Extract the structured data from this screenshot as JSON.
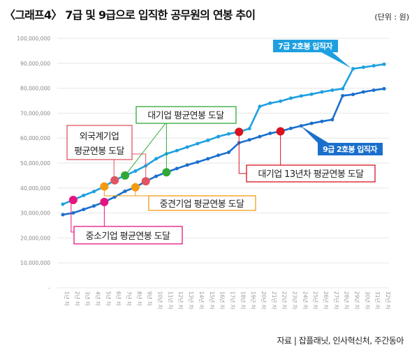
{
  "header": {
    "title": "〈그래프4〉 7급 및 9급으로 입직한 공무원의 연봉 추이",
    "unit": "(단위 : 원)"
  },
  "footer": {
    "source": "자료 | 잡플래닛, 인사혁신처, 주간동아"
  },
  "chart_data": {
    "type": "line",
    "title": "〈그래프4〉 7급 및 9급으로 입직한 공무원의 연봉 추이",
    "ylim": [
      0,
      100000000
    ],
    "grid": true,
    "yticks": [
      "-",
      "10,000,000",
      "20,000,000",
      "30,000,000",
      "40,000,000",
      "50,000,000",
      "60,000,000",
      "70,000,000",
      "80,000,000",
      "90,000,000",
      "100,000,000"
    ],
    "categories": [
      "1년 차",
      "2년 차",
      "3년 차",
      "4년 차",
      "5년 차",
      "6년 차",
      "7년 차",
      "8년 차",
      "9년 차",
      "10년 차",
      "11년 차",
      "12년 차",
      "13년 차",
      "14년 차",
      "15년 차",
      "16년 차",
      "17년 차",
      "18년 차",
      "19년 차",
      "20년 차",
      "21년 차",
      "22년 차",
      "23년 차",
      "24년 차",
      "25년 차",
      "26년 차",
      "27년 차",
      "28년 차",
      "29년 차",
      "30년 차",
      "31년 차",
      "32년 차"
    ],
    "series": [
      {
        "name": "7급 2호봉 입직자",
        "color": "#1ea0e0",
        "values": [
          33500000,
          35200000,
          37000000,
          38600000,
          40600000,
          43100000,
          45000000,
          46800000,
          48900000,
          51700000,
          53700000,
          55000000,
          56400000,
          57800000,
          59100000,
          60600000,
          61700000,
          62500000,
          63800000,
          72700000,
          74000000,
          74800000,
          76000000,
          76900000,
          77600000,
          78500000,
          79200000,
          79800000,
          87800000,
          88400000,
          89000000,
          89600000
        ]
      },
      {
        "name": "9급 2호봉 입직자",
        "color": "#1a6fcc",
        "values": [
          29300000,
          30000000,
          31400000,
          32800000,
          34400000,
          36400000,
          38700000,
          40300000,
          42700000,
          44700000,
          46300000,
          47800000,
          49200000,
          50400000,
          51700000,
          53100000,
          54300000,
          58100000,
          59300000,
          60600000,
          61900000,
          62700000,
          63900000,
          64900000,
          65900000,
          66700000,
          67400000,
          77000000,
          77500000,
          78500000,
          79200000,
          79800000
        ]
      }
    ],
    "annotations": [
      {
        "text": "중소기업 평균연봉 도달",
        "color": "#e4147f",
        "points": [
          {
            "series": 0,
            "year": 2
          },
          {
            "series": 1,
            "year": 5
          }
        ]
      },
      {
        "text": "중견기업 평균연봉 도달",
        "color": "#f39a12",
        "points": [
          {
            "series": 0,
            "year": 5
          },
          {
            "series": 1,
            "year": 8
          }
        ]
      },
      {
        "text": "외국계기업 평균연봉 도달",
        "lines": [
          "외국계기업",
          "평균연봉 도달"
        ],
        "color": "#e05561",
        "points": [
          {
            "series": 0,
            "year": 6
          },
          {
            "series": 1,
            "year": 9
          }
        ]
      },
      {
        "text": "대기업 평균연봉 도달",
        "color": "#2fa836",
        "points": [
          {
            "series": 0,
            "year": 7
          },
          {
            "series": 1,
            "year": 11
          }
        ]
      },
      {
        "text": "대기업 13년차 평균연봉 도달",
        "color": "#d8121f",
        "points": [
          {
            "series": 0,
            "year": 18
          },
          {
            "series": 1,
            "year": 22
          }
        ]
      }
    ]
  }
}
